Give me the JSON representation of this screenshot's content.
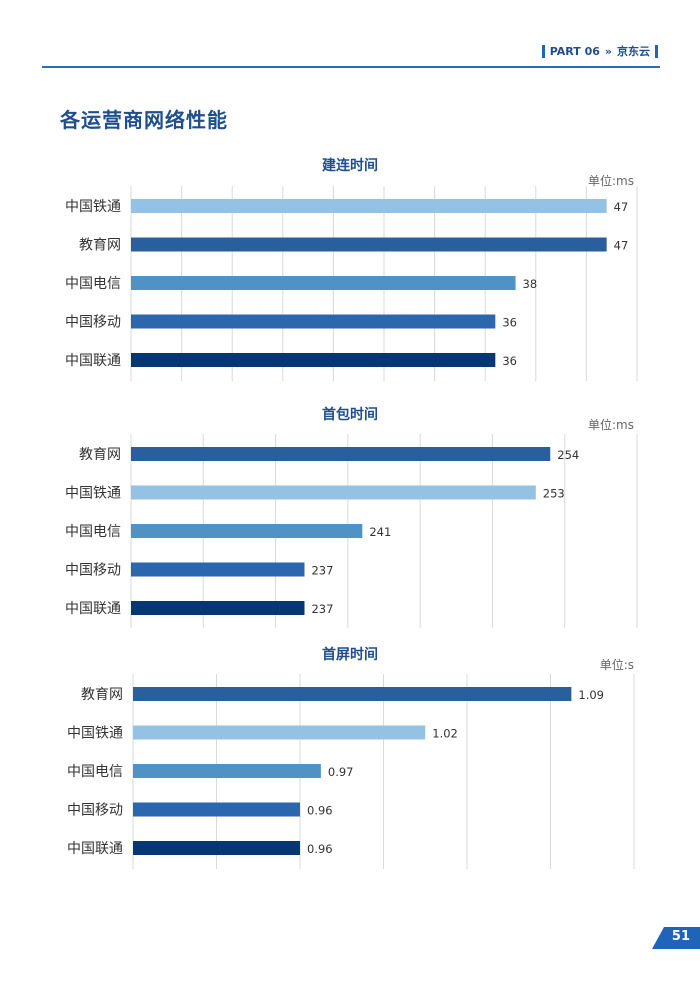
{
  "header": {
    "part": "PART 06",
    "separator": "»",
    "brand": "京东云"
  },
  "page_title": "各运营商网络性能",
  "colors": {
    "中国铁通": "#93c2e4",
    "教育网": "#2a5f9e",
    "中国电信": "#4e92c6",
    "中国移动": "#2b67ad",
    "中国联通": "#063774",
    "grid": "#d9d9d9",
    "title": "#1f4e8c"
  },
  "chart_data": [
    {
      "type": "bar",
      "title": "建连时间",
      "unit": "单位:ms",
      "categories": [
        "中国铁通",
        "教育网",
        "中国电信",
        "中国移动",
        "中国联通"
      ],
      "values": [
        47,
        47,
        38,
        36,
        36
      ],
      "labels": [
        "47",
        "47",
        "38",
        "36",
        "36"
      ],
      "xlim": [
        0,
        50
      ],
      "gridlines": 10
    },
    {
      "type": "bar",
      "title": "首包时间",
      "unit": "单位:ms",
      "categories": [
        "教育网",
        "中国铁通",
        "中国电信",
        "中国移动",
        "中国联通"
      ],
      "values": [
        254,
        253,
        241,
        237,
        237
      ],
      "labels": [
        "254",
        "253",
        "241",
        "237",
        "237"
      ],
      "xlim": [
        225,
        260
      ],
      "gridlines": 7
    },
    {
      "type": "bar",
      "title": "首屏时间",
      "unit": "单位:s",
      "categories": [
        "教育网",
        "中国铁通",
        "中国电信",
        "中国移动",
        "中国联通"
      ],
      "values": [
        1.09,
        1.02,
        0.97,
        0.96,
        0.96
      ],
      "labels": [
        "1.09",
        "1.02",
        "0.97",
        "0.96",
        "0.96"
      ],
      "xlim": [
        0.88,
        1.12
      ],
      "gridlines": 6
    }
  ],
  "page_number": "51"
}
